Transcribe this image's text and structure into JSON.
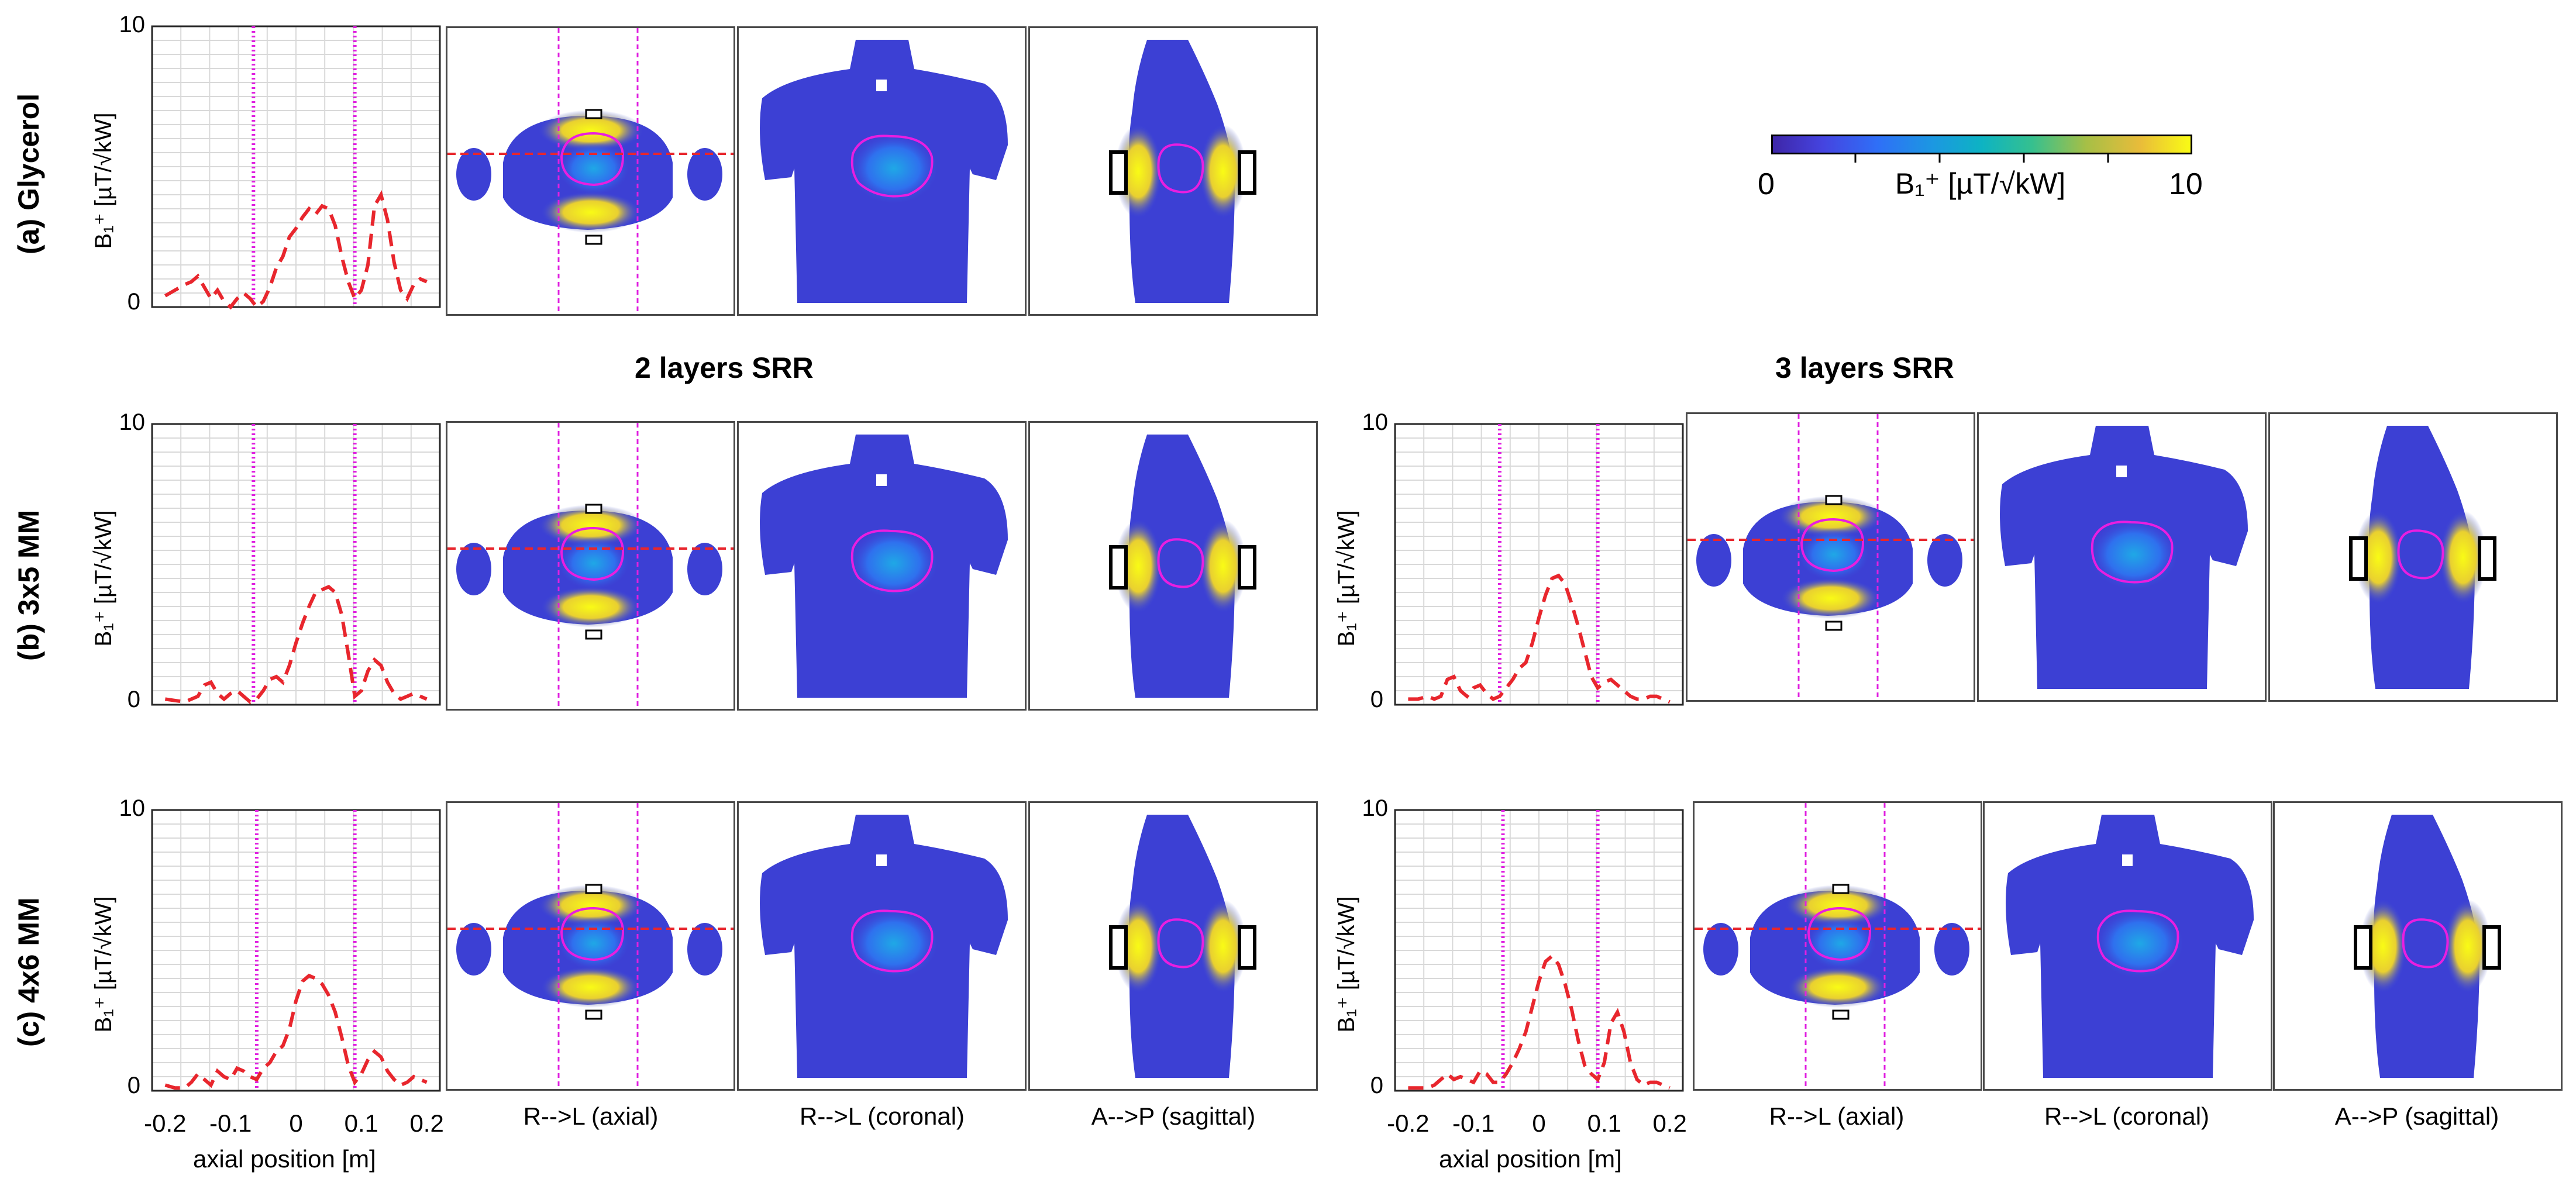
{
  "figure": {
    "section_titles": [
      "2 layers SRR",
      "3 layers SRR"
    ],
    "row_labels": [
      "(a) Glycerol",
      "(b)  3x5 MM",
      "(c) 4x6 MM"
    ],
    "view_labels": [
      "R-->L (axial)",
      "R-->L (coronal)",
      "A-->P (sagittal)"
    ],
    "colorbar": {
      "min_label": "0",
      "max_label": "10",
      "label": "B₁⁺ [µT/√kW]"
    },
    "colors": {
      "profile": "#e8262d",
      "marker": "#e020e0",
      "grid": "#d9d9d9"
    }
  },
  "chart_data": [
    {
      "id": "a-glycerol",
      "type": "line",
      "title": "(a) Glycerol",
      "xlabel": "",
      "ylabel": "B₁⁺ [µT/√kW]",
      "xlim": [
        -0.22,
        0.22
      ],
      "ylim": [
        0,
        10
      ],
      "ytick_labels": [
        "0",
        "10"
      ],
      "xtick_labels": [],
      "vlines": [
        -0.065,
        0.09
      ],
      "x": [
        -0.2,
        -0.185,
        -0.17,
        -0.16,
        -0.15,
        -0.14,
        -0.13,
        -0.12,
        -0.11,
        -0.1,
        -0.09,
        -0.08,
        -0.07,
        -0.06,
        -0.05,
        -0.04,
        -0.03,
        -0.02,
        -0.01,
        0,
        0.01,
        0.02,
        0.03,
        0.04,
        0.05,
        0.06,
        0.07,
        0.08,
        0.09,
        0.1,
        0.11,
        0.12,
        0.13,
        0.14,
        0.15,
        0.16,
        0.17,
        0.18,
        0.19,
        0.2
      ],
      "values": [
        0.4,
        0.6,
        0.8,
        0.9,
        1.1,
        0.7,
        0.3,
        0.6,
        0.2,
        0.0,
        0.3,
        0.5,
        0.3,
        0.0,
        0.2,
        0.7,
        1.4,
        1.8,
        2.5,
        2.8,
        3.2,
        3.5,
        3.3,
        3.6,
        3.5,
        2.9,
        1.8,
        0.9,
        0.3,
        0.6,
        1.5,
        3.6,
        4.0,
        3.1,
        1.6,
        0.6,
        0.3,
        0.8,
        1.0,
        0.9
      ]
    },
    {
      "id": "b-2layers",
      "type": "line",
      "title": "(b)  3x5 MM",
      "xlabel": "",
      "ylabel": "B₁⁺ [µT/√kW]",
      "xlim": [
        -0.22,
        0.22
      ],
      "ylim": [
        0,
        10
      ],
      "ytick_labels": [
        "0",
        "10"
      ],
      "xtick_labels": [],
      "vlines": [
        -0.065,
        0.09
      ],
      "x": [
        -0.2,
        -0.185,
        -0.17,
        -0.16,
        -0.15,
        -0.14,
        -0.13,
        -0.12,
        -0.11,
        -0.1,
        -0.09,
        -0.08,
        -0.07,
        -0.06,
        -0.05,
        -0.04,
        -0.03,
        -0.02,
        -0.01,
        0,
        0.01,
        0.02,
        0.03,
        0.04,
        0.05,
        0.06,
        0.07,
        0.08,
        0.09,
        0.1,
        0.11,
        0.12,
        0.13,
        0.14,
        0.15,
        0.16,
        0.17,
        0.18,
        0.19,
        0.2
      ],
      "values": [
        0.2,
        0.15,
        0.1,
        0.2,
        0.3,
        0.7,
        0.8,
        0.4,
        0.2,
        0.4,
        0.5,
        0.3,
        0.1,
        0.2,
        0.5,
        0.9,
        1.0,
        0.8,
        1.4,
        2.2,
        2.9,
        3.5,
        4.0,
        4.1,
        4.2,
        4.0,
        3.2,
        1.8,
        0.3,
        0.5,
        1.2,
        1.6,
        1.4,
        0.8,
        0.4,
        0.2,
        0.3,
        0.4,
        0.3,
        0.2
      ]
    },
    {
      "id": "b-3layers",
      "type": "line",
      "title": "(b)  3x5 MM",
      "xlabel": "",
      "ylabel": "B₁⁺ [µT/√kW]",
      "xlim": [
        -0.22,
        0.22
      ],
      "ylim": [
        0,
        10
      ],
      "ytick_labels": [
        "0",
        "10"
      ],
      "xtick_labels": [],
      "vlines": [
        -0.06,
        0.09
      ],
      "x": [
        -0.2,
        -0.185,
        -0.17,
        -0.16,
        -0.15,
        -0.14,
        -0.13,
        -0.12,
        -0.11,
        -0.1,
        -0.09,
        -0.08,
        -0.07,
        -0.06,
        -0.05,
        -0.04,
        -0.03,
        -0.02,
        -0.01,
        0,
        0.01,
        0.02,
        0.03,
        0.04,
        0.05,
        0.06,
        0.07,
        0.08,
        0.09,
        0.1,
        0.11,
        0.12,
        0.13,
        0.14,
        0.15,
        0.16,
        0.17,
        0.18,
        0.19,
        0.2
      ],
      "values": [
        0.2,
        0.2,
        0.3,
        0.2,
        0.3,
        0.9,
        1.0,
        0.5,
        0.3,
        0.6,
        0.7,
        0.4,
        0.2,
        0.3,
        0.6,
        0.9,
        1.3,
        1.5,
        2.2,
        3.1,
        3.9,
        4.5,
        4.6,
        4.3,
        3.6,
        2.8,
        1.9,
        1.0,
        0.6,
        0.8,
        0.9,
        0.7,
        0.5,
        0.3,
        0.2,
        0.2,
        0.3,
        0.3,
        0.2,
        0.1
      ]
    },
    {
      "id": "c-2layers",
      "type": "line",
      "title": "(c) 4x6 MM",
      "xlabel": "axial position [m]",
      "ylabel": "B₁⁺ [µT/√kW]",
      "xlim": [
        -0.22,
        0.22
      ],
      "ylim": [
        0,
        10
      ],
      "ytick_labels": [
        "0",
        "10"
      ],
      "xtick_labels": [
        "-0.2",
        "-0.1",
        "0",
        "0.1",
        "0.2"
      ],
      "xticks": [
        -0.2,
        -0.1,
        0,
        0.1,
        0.2
      ],
      "vlines": [
        -0.06,
        0.09
      ],
      "x": [
        -0.2,
        -0.185,
        -0.17,
        -0.16,
        -0.15,
        -0.14,
        -0.13,
        -0.12,
        -0.11,
        -0.1,
        -0.09,
        -0.08,
        -0.07,
        -0.06,
        -0.05,
        -0.04,
        -0.03,
        -0.02,
        -0.01,
        0,
        0.01,
        0.02,
        0.03,
        0.04,
        0.05,
        0.06,
        0.07,
        0.08,
        0.09,
        0.1,
        0.11,
        0.12,
        0.13,
        0.14,
        0.15,
        0.16,
        0.17,
        0.18,
        0.19,
        0.2
      ],
      "values": [
        0.2,
        0.1,
        0.1,
        0.3,
        0.6,
        0.4,
        0.2,
        0.7,
        0.5,
        0.4,
        0.8,
        0.7,
        0.5,
        0.4,
        0.8,
        1.0,
        1.4,
        1.6,
        2.2,
        3.2,
        3.9,
        4.1,
        4.0,
        3.8,
        3.4,
        2.8,
        1.9,
        0.9,
        0.3,
        0.6,
        1.1,
        1.4,
        1.2,
        0.7,
        0.4,
        0.2,
        0.3,
        0.5,
        0.4,
        0.3
      ]
    },
    {
      "id": "c-3layers",
      "type": "line",
      "title": "(c) 4x6 MM",
      "xlabel": "axial position [m]",
      "ylabel": "B₁⁺ [µT/√kW]",
      "xlim": [
        -0.22,
        0.22
      ],
      "ylim": [
        0,
        10
      ],
      "ytick_labels": [
        "0",
        "10"
      ],
      "xtick_labels": [
        "-0.2",
        "-0.1",
        "0",
        "0.1",
        "0.2"
      ],
      "xticks": [
        -0.2,
        -0.1,
        0,
        0.1,
        0.2
      ],
      "vlines": [
        -0.055,
        0.09
      ],
      "x": [
        -0.2,
        -0.185,
        -0.17,
        -0.16,
        -0.15,
        -0.14,
        -0.13,
        -0.12,
        -0.11,
        -0.1,
        -0.09,
        -0.08,
        -0.07,
        -0.06,
        -0.05,
        -0.04,
        -0.03,
        -0.02,
        -0.01,
        0,
        0.01,
        0.02,
        0.03,
        0.04,
        0.05,
        0.06,
        0.07,
        0.08,
        0.09,
        0.1,
        0.11,
        0.12,
        0.13,
        0.14,
        0.15,
        0.16,
        0.17,
        0.18,
        0.19,
        0.2
      ],
      "values": [
        0.1,
        0.1,
        0.1,
        0.2,
        0.4,
        0.6,
        0.4,
        0.5,
        0.4,
        0.3,
        0.7,
        0.6,
        0.3,
        0.3,
        0.6,
        1.0,
        1.5,
        2.1,
        3.0,
        3.9,
        4.6,
        4.8,
        4.5,
        3.8,
        2.9,
        1.8,
        0.9,
        0.6,
        0.4,
        1.0,
        2.4,
        2.8,
        2.1,
        1.0,
        0.4,
        0.2,
        0.3,
        0.3,
        0.2,
        0.1
      ]
    }
  ]
}
